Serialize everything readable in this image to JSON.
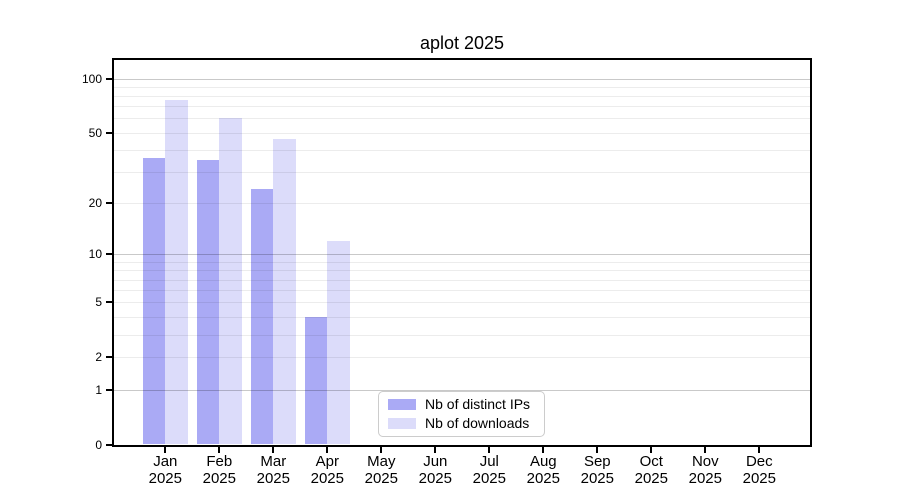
{
  "title": "aplot 2025",
  "chart_data": {
    "type": "bar",
    "title": "aplot 2025",
    "categories": [
      "Jan",
      "Feb",
      "Mar",
      "Apr",
      "May",
      "Jun",
      "Jul",
      "Aug",
      "Sep",
      "Oct",
      "Nov",
      "Dec"
    ],
    "year_label": "2025",
    "series": [
      {
        "name": "Nb of distinct IPs",
        "color": "#aaaaf5",
        "values": [
          36,
          35,
          24,
          4,
          null,
          null,
          null,
          null,
          null,
          null,
          null,
          null
        ]
      },
      {
        "name": "Nb of downloads",
        "color": "#dcdcfa",
        "values": [
          76,
          60,
          46,
          12,
          null,
          null,
          null,
          null,
          null,
          null,
          null,
          null
        ]
      }
    ],
    "y_ticks": [
      0,
      1,
      2,
      5,
      10,
      20,
      50,
      100
    ],
    "y_scale": "log10(value+1)",
    "ylim": [
      0,
      128
    ],
    "major_gridlines": [
      1,
      10,
      100
    ],
    "minor_gridlines": [
      2,
      3,
      4,
      5,
      6,
      7,
      8,
      9,
      20,
      30,
      40,
      50,
      60,
      70,
      80,
      90
    ],
    "grid": "horizontal",
    "legend_position": "bottom-center"
  }
}
